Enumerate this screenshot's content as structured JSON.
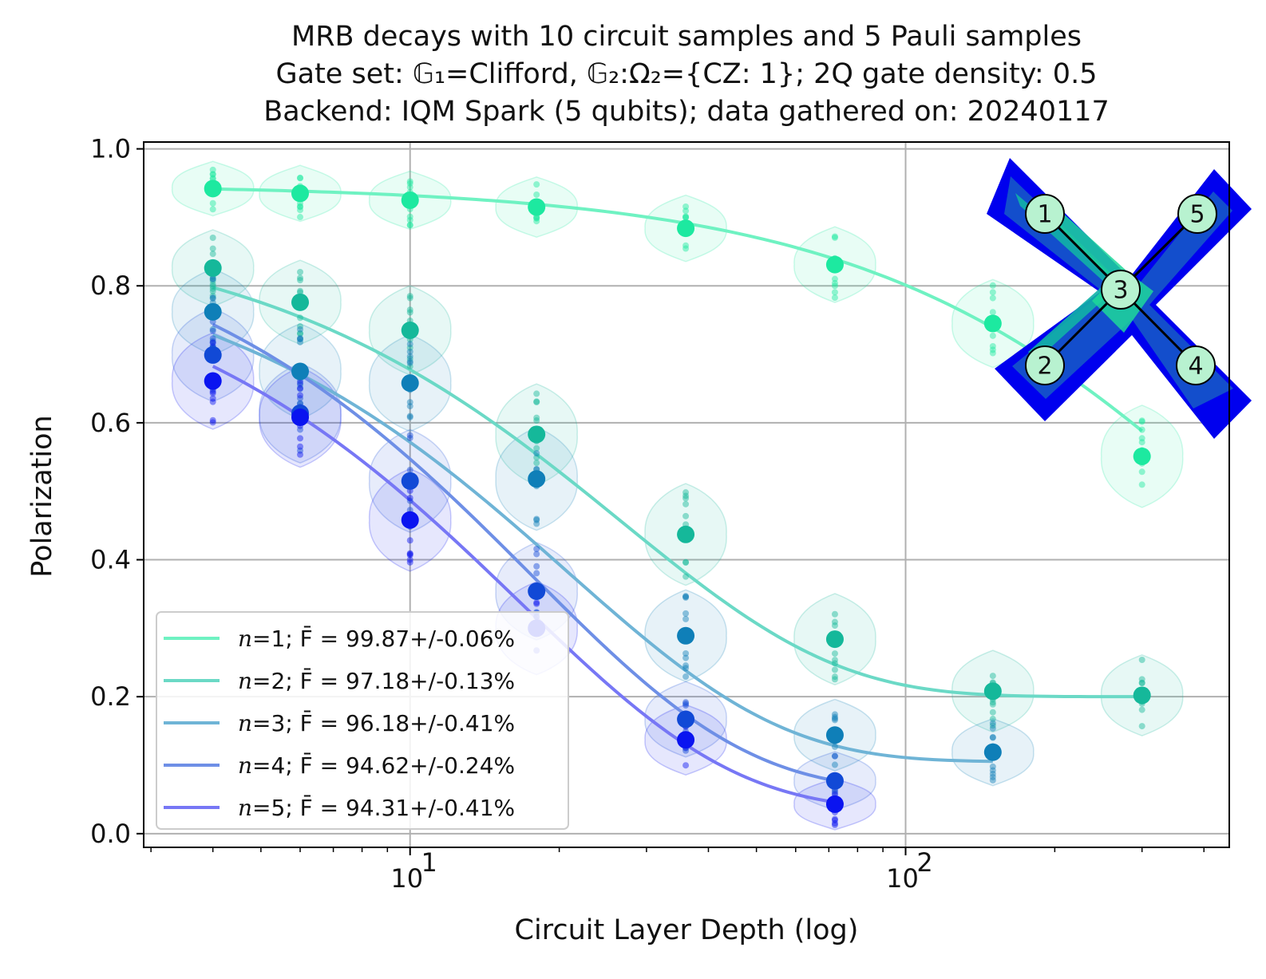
{
  "chart_data": {
    "type": "line",
    "title_lines": [
      "MRB decays with 10 circuit samples and 5 Pauli samples",
      "Gate set: 𝔾₁=Clifford, 𝔾₂:Ω₂={CZ: 1}; 2Q gate density: 0.5",
      "Backend: IQM Spark (5 qubits); data gathered on: 20240117"
    ],
    "xlabel": "Circuit Layer Depth (log)",
    "ylabel": "Polarization",
    "x_scale": "log",
    "xlim": [
      2.9,
      450
    ],
    "ylim": [
      -0.02,
      1.01
    ],
    "y_ticks": [
      "0.0",
      "0.2",
      "0.4",
      "0.6",
      "0.8",
      "1.0"
    ],
    "x_ticks": [
      {
        "base": "10",
        "exp": "1",
        "value": 10
      },
      {
        "base": "10",
        "exp": "2",
        "value": 100
      }
    ],
    "grid": true,
    "legend_position": "lower-left",
    "depths": [
      4,
      6,
      10,
      18,
      36,
      72,
      150,
      300
    ],
    "series": [
      {
        "name": "n=1; F̄ = 99.87+/-0.06%",
        "n_label": "n",
        "rest_label": "=1; F̄ = 99.87+/-0.06%",
        "color": "#1de9a0",
        "line_color": "#6ff2c2",
        "x": [
          4,
          6,
          10,
          18,
          36,
          72,
          150,
          300
        ],
        "means": [
          0.942,
          0.935,
          0.925,
          0.915,
          0.884,
          0.831,
          0.745,
          0.551
        ],
        "fit": {
          "A": 0.748,
          "p": 0.997815,
          "B": 0.2
        }
      },
      {
        "name": "n=2; F̄ = 97.18+/-0.13%",
        "n_label": "n",
        "rest_label": "=2; F̄ = 97.18+/-0.13%",
        "color": "#15b89a",
        "line_color": "#6bd9c6",
        "x": [
          4,
          6,
          10,
          18,
          36,
          72,
          150,
          300
        ],
        "means": [
          0.826,
          0.776,
          0.735,
          0.583,
          0.437,
          0.284,
          0.208,
          0.202
        ],
        "fit": {
          "A": 0.694,
          "p": 0.9633,
          "B": 0.2
        }
      },
      {
        "name": "n=3; F̄ = 96.18+/-0.41%",
        "n_label": "n",
        "rest_label": "=3; F̄ = 96.18+/-0.41%",
        "color": "#0f7fb8",
        "line_color": "#6fb4d6",
        "x": [
          4,
          6,
          10,
          18,
          36,
          72,
          150
        ],
        "means": [
          0.762,
          0.675,
          0.658,
          0.518,
          0.289,
          0.144,
          0.119
        ],
        "fit": {
          "A": 0.756,
          "p": 0.9529,
          "B": 0.105
        }
      },
      {
        "name": "n=4; F̄ = 94.62+/-0.24%",
        "n_label": "n",
        "rest_label": "=4; F̄ = 94.62+/-0.24%",
        "color": "#1149d6",
        "line_color": "#6e8fe6",
        "x": [
          4,
          6,
          10,
          18,
          36,
          72
        ],
        "means": [
          0.699,
          0.614,
          0.515,
          0.354,
          0.167,
          0.077
        ],
        "fit": {
          "A": 0.854,
          "p": 0.9448,
          "B": 0.063
        }
      },
      {
        "name": "n=5; F̄ = 94.31+/-0.41%",
        "n_label": "n",
        "rest_label": "=5; F̄ = 94.31+/-0.41%",
        "color": "#0a14f0",
        "line_color": "#7777f5",
        "x": [
          4,
          6,
          10,
          18,
          36,
          72
        ],
        "means": [
          0.661,
          0.608,
          0.458,
          0.3,
          0.137,
          0.043
        ],
        "fit": {
          "A": 0.823,
          "p": 0.9418,
          "B": 0.035
        }
      }
    ],
    "inset": {
      "qubits": [
        "1",
        "2",
        "3",
        "4",
        "5"
      ],
      "edges": [
        [
          "1",
          "3"
        ],
        [
          "2",
          "3"
        ],
        [
          "3",
          "4"
        ],
        [
          "3",
          "5"
        ]
      ]
    }
  }
}
